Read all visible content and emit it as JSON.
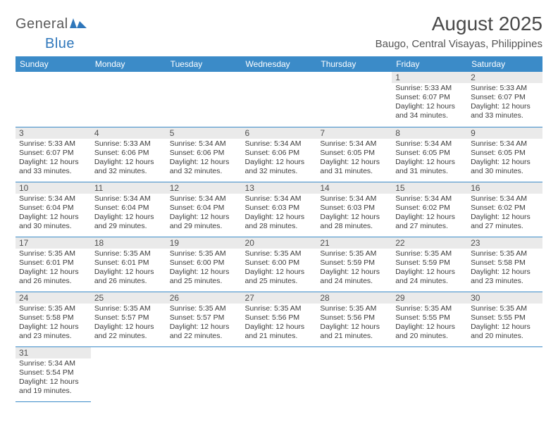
{
  "logo": {
    "general": "General",
    "blue": "Blue"
  },
  "header": {
    "title": "August 2025",
    "location": "Baugo, Central Visayas, Philippines"
  },
  "styling": {
    "header_bg": "#3b8bc8",
    "header_text": "#ffffff",
    "daynum_bg": "#eaeaea",
    "border_color": "#3b8bc8",
    "title_fontsize": 28,
    "location_fontsize": 15,
    "dayhead_fontsize": 12,
    "daytext_fontsize": 10.5
  },
  "weekdays": [
    "Sunday",
    "Monday",
    "Tuesday",
    "Wednesday",
    "Thursday",
    "Friday",
    "Saturday"
  ],
  "weeks": [
    [
      null,
      null,
      null,
      null,
      null,
      {
        "n": "1",
        "sr": "5:33 AM",
        "ss": "6:07 PM",
        "dl": "12 hours and 34 minutes."
      },
      {
        "n": "2",
        "sr": "5:33 AM",
        "ss": "6:07 PM",
        "dl": "12 hours and 33 minutes."
      }
    ],
    [
      {
        "n": "3",
        "sr": "5:33 AM",
        "ss": "6:07 PM",
        "dl": "12 hours and 33 minutes."
      },
      {
        "n": "4",
        "sr": "5:33 AM",
        "ss": "6:06 PM",
        "dl": "12 hours and 32 minutes."
      },
      {
        "n": "5",
        "sr": "5:34 AM",
        "ss": "6:06 PM",
        "dl": "12 hours and 32 minutes."
      },
      {
        "n": "6",
        "sr": "5:34 AM",
        "ss": "6:06 PM",
        "dl": "12 hours and 32 minutes."
      },
      {
        "n": "7",
        "sr": "5:34 AM",
        "ss": "6:05 PM",
        "dl": "12 hours and 31 minutes."
      },
      {
        "n": "8",
        "sr": "5:34 AM",
        "ss": "6:05 PM",
        "dl": "12 hours and 31 minutes."
      },
      {
        "n": "9",
        "sr": "5:34 AM",
        "ss": "6:05 PM",
        "dl": "12 hours and 30 minutes."
      }
    ],
    [
      {
        "n": "10",
        "sr": "5:34 AM",
        "ss": "6:04 PM",
        "dl": "12 hours and 30 minutes."
      },
      {
        "n": "11",
        "sr": "5:34 AM",
        "ss": "6:04 PM",
        "dl": "12 hours and 29 minutes."
      },
      {
        "n": "12",
        "sr": "5:34 AM",
        "ss": "6:04 PM",
        "dl": "12 hours and 29 minutes."
      },
      {
        "n": "13",
        "sr": "5:34 AM",
        "ss": "6:03 PM",
        "dl": "12 hours and 28 minutes."
      },
      {
        "n": "14",
        "sr": "5:34 AM",
        "ss": "6:03 PM",
        "dl": "12 hours and 28 minutes."
      },
      {
        "n": "15",
        "sr": "5:34 AM",
        "ss": "6:02 PM",
        "dl": "12 hours and 27 minutes."
      },
      {
        "n": "16",
        "sr": "5:34 AM",
        "ss": "6:02 PM",
        "dl": "12 hours and 27 minutes."
      }
    ],
    [
      {
        "n": "17",
        "sr": "5:35 AM",
        "ss": "6:01 PM",
        "dl": "12 hours and 26 minutes."
      },
      {
        "n": "18",
        "sr": "5:35 AM",
        "ss": "6:01 PM",
        "dl": "12 hours and 26 minutes."
      },
      {
        "n": "19",
        "sr": "5:35 AM",
        "ss": "6:00 PM",
        "dl": "12 hours and 25 minutes."
      },
      {
        "n": "20",
        "sr": "5:35 AM",
        "ss": "6:00 PM",
        "dl": "12 hours and 25 minutes."
      },
      {
        "n": "21",
        "sr": "5:35 AM",
        "ss": "5:59 PM",
        "dl": "12 hours and 24 minutes."
      },
      {
        "n": "22",
        "sr": "5:35 AM",
        "ss": "5:59 PM",
        "dl": "12 hours and 24 minutes."
      },
      {
        "n": "23",
        "sr": "5:35 AM",
        "ss": "5:58 PM",
        "dl": "12 hours and 23 minutes."
      }
    ],
    [
      {
        "n": "24",
        "sr": "5:35 AM",
        "ss": "5:58 PM",
        "dl": "12 hours and 23 minutes."
      },
      {
        "n": "25",
        "sr": "5:35 AM",
        "ss": "5:57 PM",
        "dl": "12 hours and 22 minutes."
      },
      {
        "n": "26",
        "sr": "5:35 AM",
        "ss": "5:57 PM",
        "dl": "12 hours and 22 minutes."
      },
      {
        "n": "27",
        "sr": "5:35 AM",
        "ss": "5:56 PM",
        "dl": "12 hours and 21 minutes."
      },
      {
        "n": "28",
        "sr": "5:35 AM",
        "ss": "5:56 PM",
        "dl": "12 hours and 21 minutes."
      },
      {
        "n": "29",
        "sr": "5:35 AM",
        "ss": "5:55 PM",
        "dl": "12 hours and 20 minutes."
      },
      {
        "n": "30",
        "sr": "5:35 AM",
        "ss": "5:55 PM",
        "dl": "12 hours and 20 minutes."
      }
    ],
    [
      {
        "n": "31",
        "sr": "5:34 AM",
        "ss": "5:54 PM",
        "dl": "12 hours and 19 minutes."
      },
      null,
      null,
      null,
      null,
      null,
      null
    ]
  ],
  "labels": {
    "sunrise": "Sunrise:",
    "sunset": "Sunset:",
    "daylight": "Daylight:"
  }
}
